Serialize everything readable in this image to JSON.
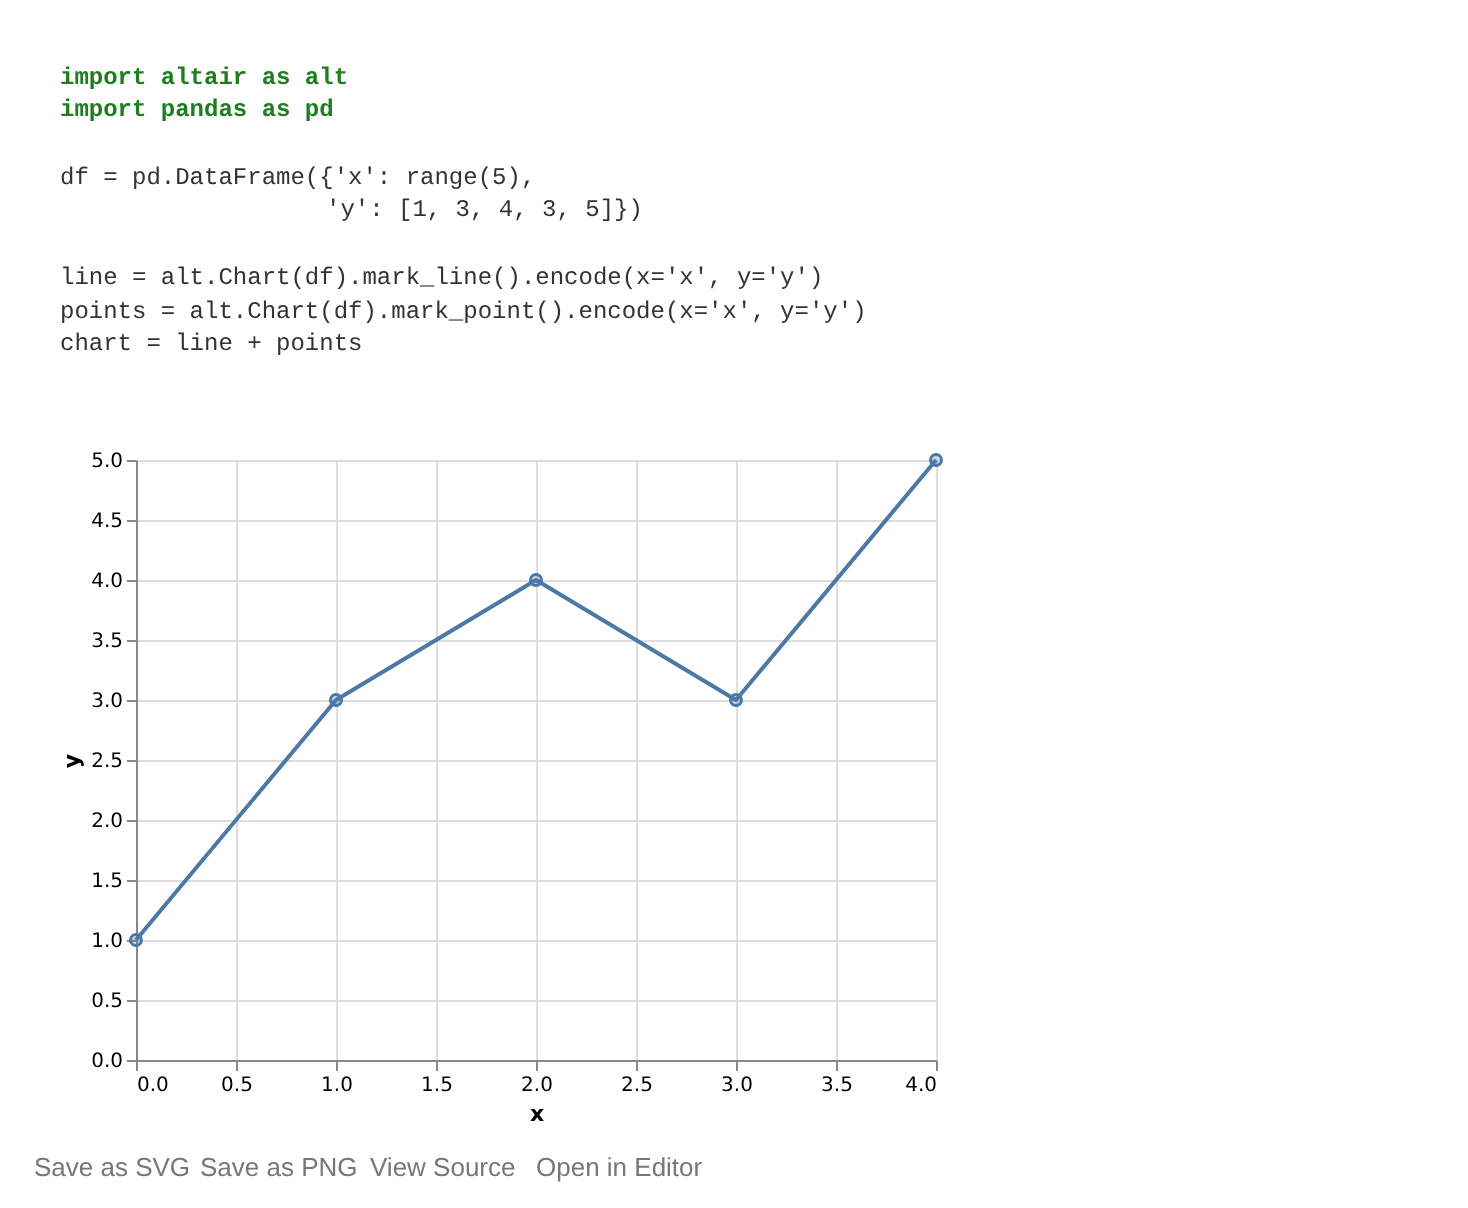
{
  "chart_data": {
    "type": "line",
    "xlabel": "x",
    "ylabel": "y",
    "x": [
      0,
      1,
      2,
      3,
      4
    ],
    "series": [
      {
        "color": "#4c78a8",
        "values": [
          1,
          3,
          4,
          3,
          5
        ]
      }
    ],
    "xlim": [
      0,
      4
    ],
    "ylim": [
      0,
      5
    ],
    "xticks": [
      {
        "value": 0,
        "label": "0.0"
      },
      {
        "value": 0.5,
        "label": "0.5"
      },
      {
        "value": 1,
        "label": "1.0"
      },
      {
        "value": 1.5,
        "label": "1.5"
      },
      {
        "value": 2,
        "label": "2.0"
      },
      {
        "value": 2.5,
        "label": "2.5"
      },
      {
        "value": 3,
        "label": "3.0"
      },
      {
        "value": 3.5,
        "label": "3.5"
      },
      {
        "value": 4,
        "label": "4.0"
      }
    ],
    "yticks": [
      {
        "value": 0,
        "label": "0.0"
      },
      {
        "value": 0.5,
        "label": "0.5"
      },
      {
        "value": 1,
        "label": "1.0"
      },
      {
        "value": 1.5,
        "label": "1.5"
      },
      {
        "value": 2,
        "label": "2.0"
      },
      {
        "value": 2.5,
        "label": "2.5"
      },
      {
        "value": 3,
        "label": "3.0"
      },
      {
        "value": 3.5,
        "label": "3.5"
      },
      {
        "value": 4,
        "label": "4.0"
      },
      {
        "value": 4.5,
        "label": "4.5"
      },
      {
        "value": 5,
        "label": "5.0"
      }
    ],
    "grid": true,
    "marker": "circle",
    "line_style": "solid",
    "annotations": [
      "import altair as alt",
      "import pandas as pd",
      "df = pd.DataFrame({'x': range(5),",
      "'y': [1, 3, 4, 3, 5]})",
      "line = alt.Chart(df).mark_line().encode(x='x', y='y')",
      "points = alt.Chart(df).mark_point().encode(x='x', y='y')",
      "chart = line + points",
      "Save as SVG",
      "Save as PNG",
      "View Source",
      "Open in Editor"
    ]
  }
}
